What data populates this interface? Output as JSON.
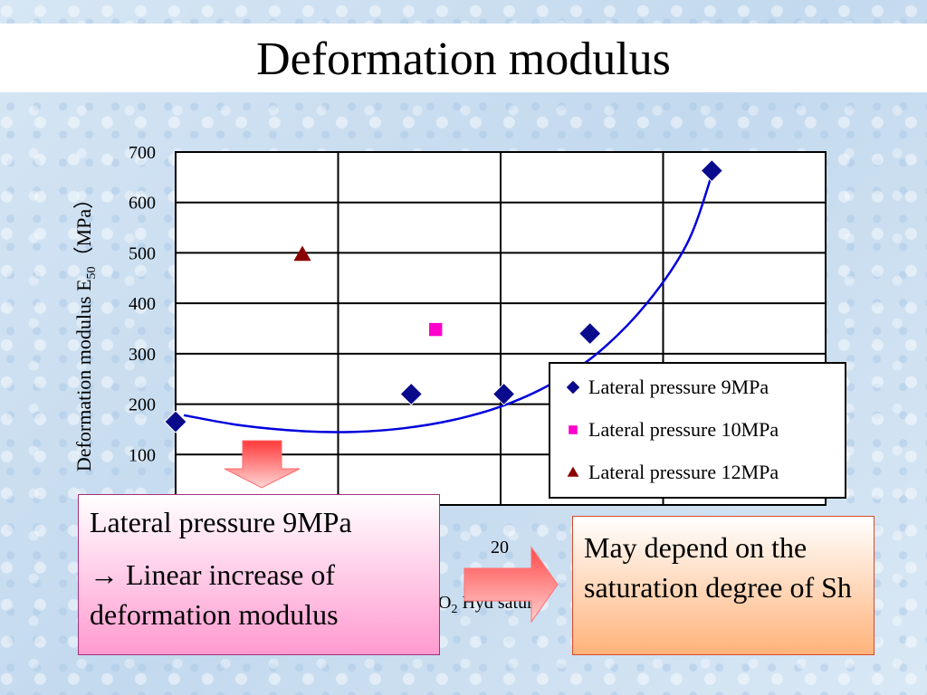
{
  "slide": {
    "title": "Deformation modulus"
  },
  "notes": {
    "left_line1": "Lateral pressure 9MPa",
    "left_line2": "→ Linear increase of deformation modulus",
    "right": "May depend on the saturation degree of Sh"
  },
  "chart_data": {
    "type": "scatter",
    "title": "",
    "ylabel": "Deformation modulus E50（MPa）",
    "xlabel_visible_fragment": "O2 Hyd satur",
    "y_ticks": [
      100,
      200,
      300,
      400,
      500,
      600,
      700
    ],
    "x_tick_visible": "20",
    "ylim": [
      0,
      700
    ],
    "xlim": [
      0,
      40
    ],
    "grid": true,
    "legend_position": "bottom-right",
    "series": [
      {
        "name": "Lateral pressure 9MPa",
        "marker": "diamond",
        "color": "#0a0a8c",
        "x": [
          0,
          14.5,
          20.2,
          25.5,
          33
        ],
        "y": [
          165,
          220,
          220,
          340,
          663
        ]
      },
      {
        "name": "Lateral pressure 10MPa",
        "marker": "square",
        "color": "#ff00cc",
        "x": [
          16
        ],
        "y": [
          348
        ]
      },
      {
        "name": "Lateral pressure 12MPa",
        "marker": "triangle",
        "color": "#8b0000",
        "x": [
          7.8
        ],
        "y": [
          497
        ]
      }
    ],
    "trendline": {
      "color": "#0000dd",
      "x": [
        0.5,
        4,
        8,
        11,
        14,
        17,
        20,
        23,
        26,
        29,
        31.5,
        33
      ],
      "y": [
        178,
        158,
        146,
        145,
        152,
        168,
        195,
        238,
        302,
        400,
        520,
        655
      ]
    },
    "colors": {
      "lateral_9_arrow": "#ff5050",
      "legend_border": "#000000"
    }
  }
}
